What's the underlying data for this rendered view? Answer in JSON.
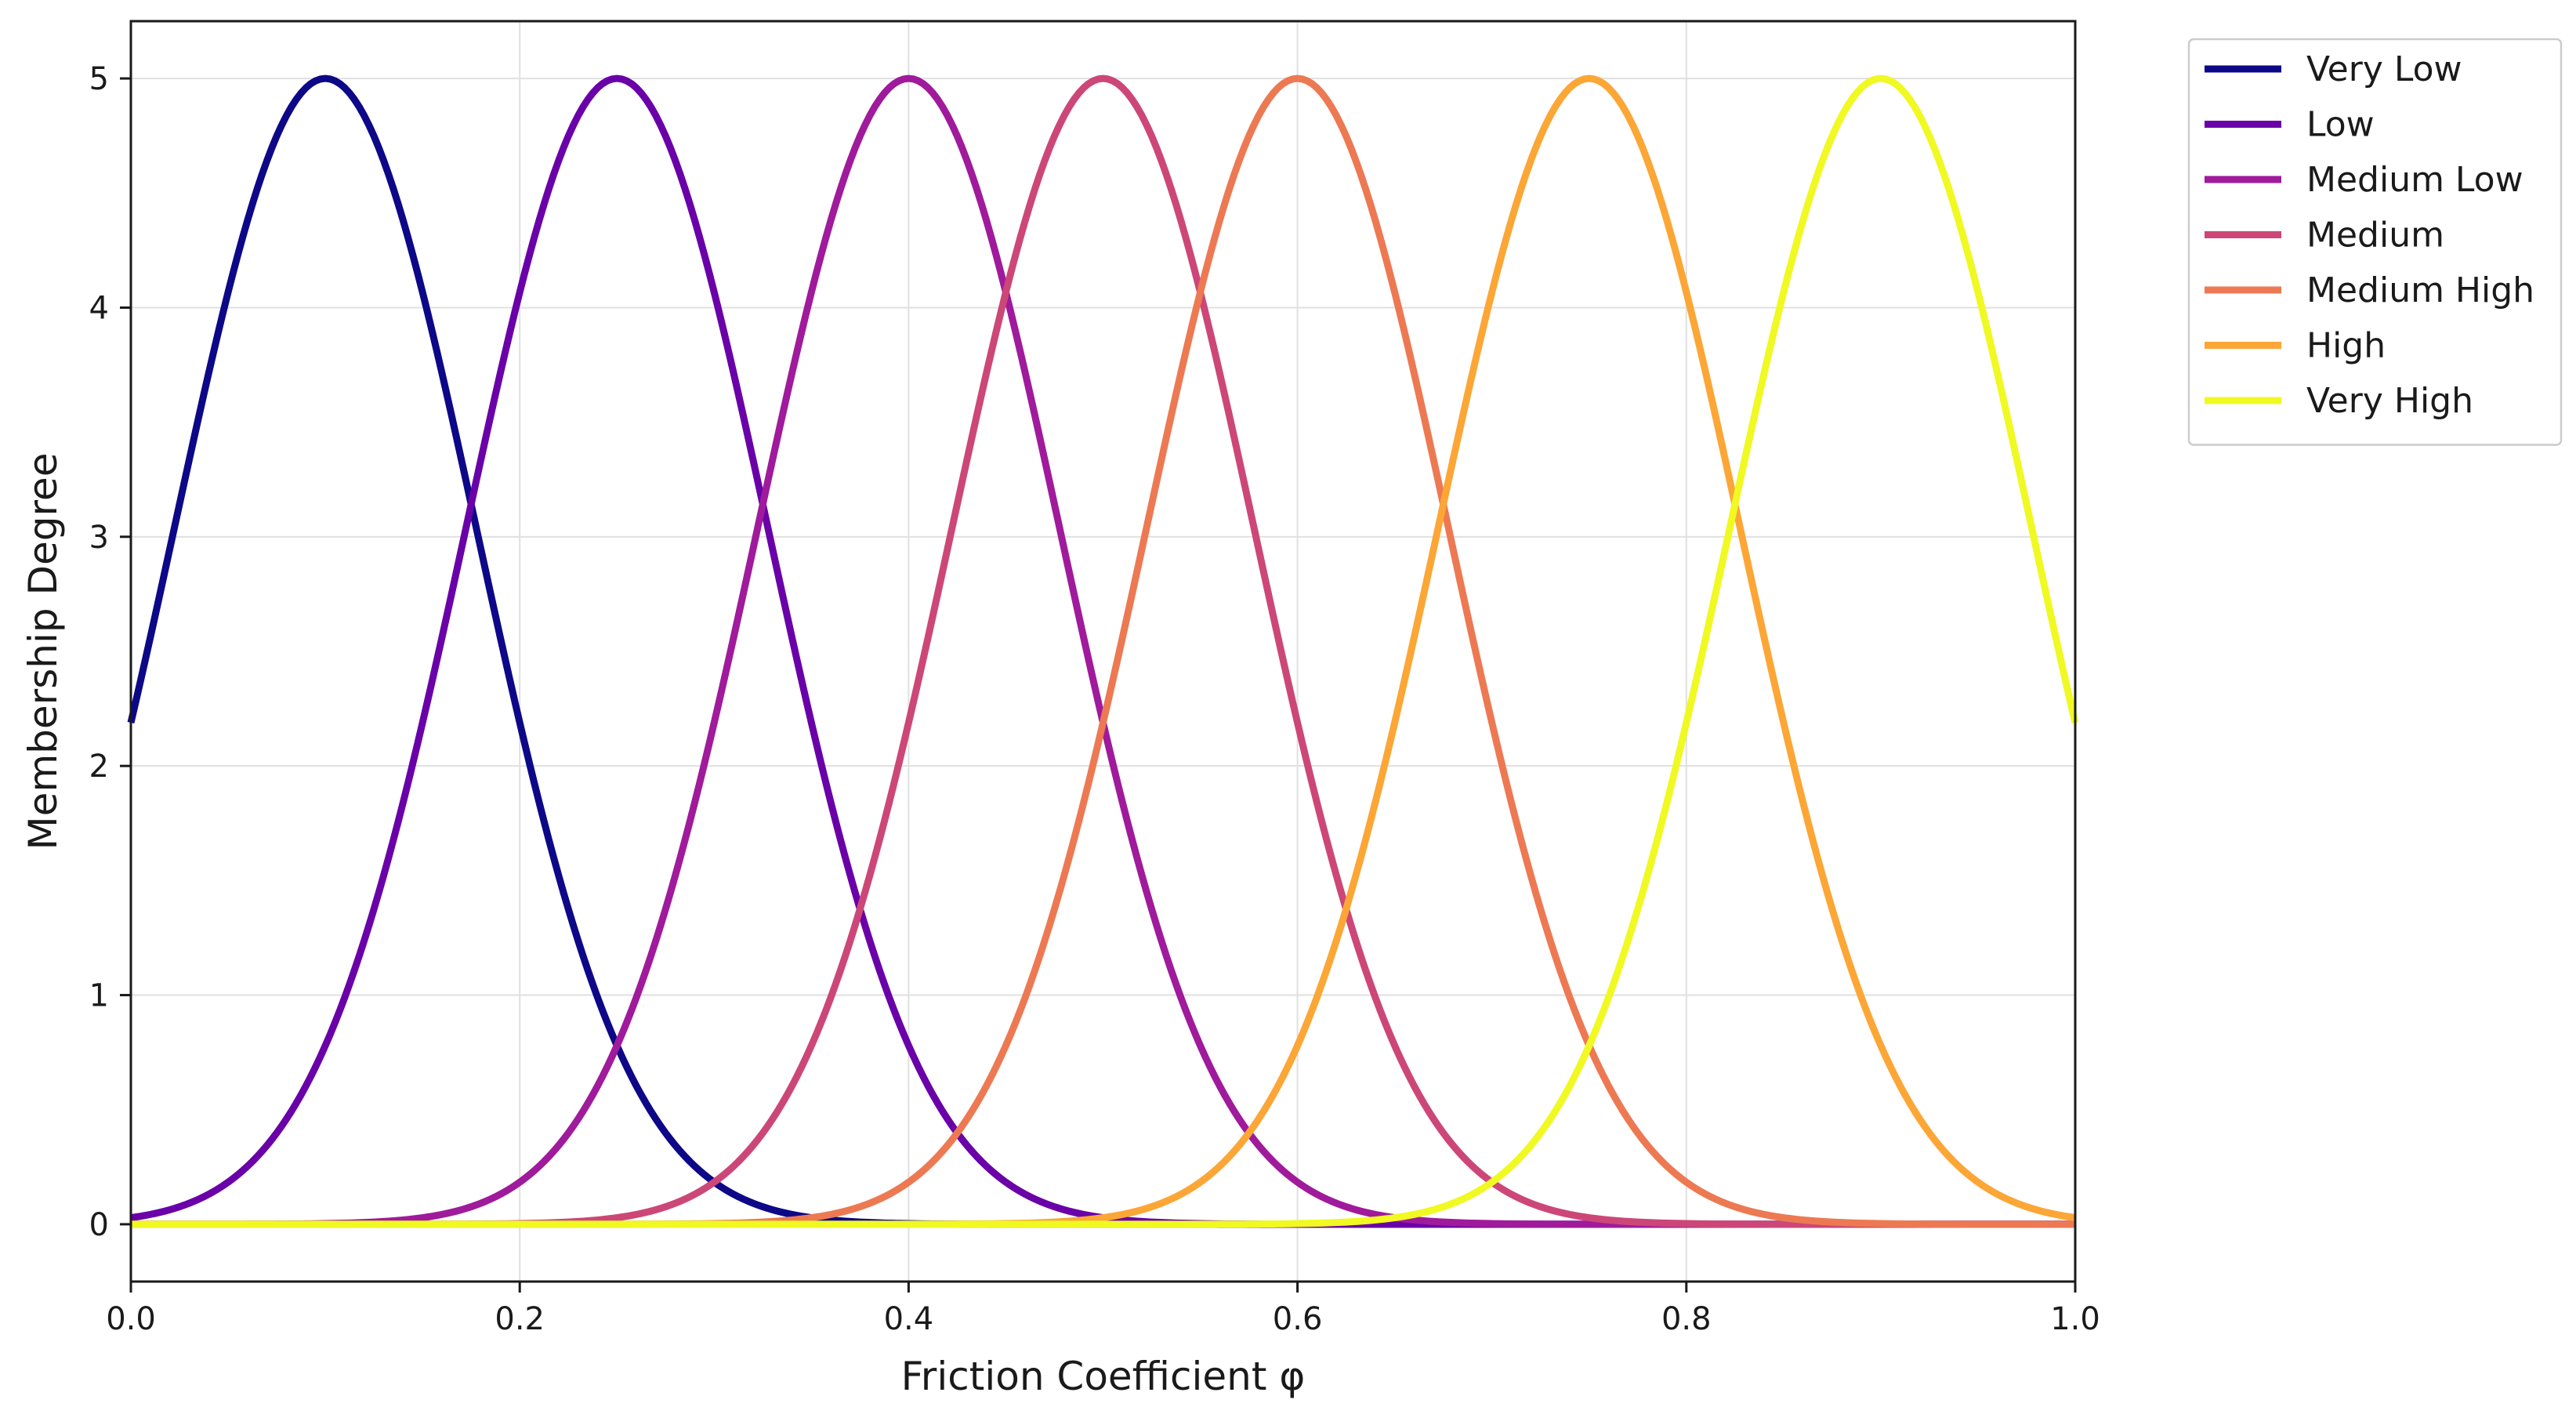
{
  "chart_data": {
    "type": "line",
    "title": "",
    "xlabel": "Friction Coefficient φ",
    "ylabel": "Membership Degree",
    "xlim": [
      0,
      1
    ],
    "ylim": [
      -0.25,
      5.25
    ],
    "x_ticks": [
      "0.0",
      "0.2",
      "0.4",
      "0.6",
      "0.8",
      "1.0"
    ],
    "x_tick_values": [
      0,
      0.2,
      0.4,
      0.6,
      0.8,
      1.0
    ],
    "y_ticks": [
      "0",
      "1",
      "2",
      "3",
      "4",
      "5"
    ],
    "y_tick_values": [
      0,
      1,
      2,
      3,
      4,
      5
    ],
    "grid": true,
    "legend_position": "outside top-right",
    "curve_shape": "gaussian",
    "series": [
      {
        "name": "Very Low",
        "center": 0.1,
        "peak": 5,
        "sigma": 0.0778,
        "color": "#0d0887"
      },
      {
        "name": "Low",
        "center": 0.25,
        "peak": 5,
        "sigma": 0.0778,
        "color": "#6a00a8"
      },
      {
        "name": "Medium Low",
        "center": 0.4,
        "peak": 5,
        "sigma": 0.0778,
        "color": "#a01a9c"
      },
      {
        "name": "Medium",
        "center": 0.5,
        "peak": 5,
        "sigma": 0.0778,
        "color": "#cc4778"
      },
      {
        "name": "Medium High",
        "center": 0.6,
        "peak": 5,
        "sigma": 0.0778,
        "color": "#ed7953"
      },
      {
        "name": "High",
        "center": 0.75,
        "peak": 5,
        "sigma": 0.0778,
        "color": "#fca636"
      },
      {
        "name": "Very High",
        "center": 0.9,
        "peak": 5,
        "sigma": 0.0778,
        "color": "#f0f921"
      }
    ]
  }
}
